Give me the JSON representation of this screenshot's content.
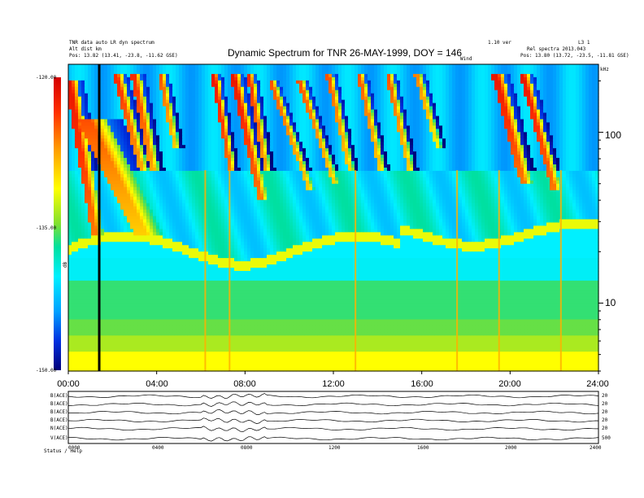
{
  "header": {
    "left_line1": "TNR data  auto  LR  dyn spectrum",
    "left_line2": "Alt  dist  km",
    "left_line3": "Pos: 13.82 (13.41, -23.8, -11.62 GSE)",
    "right_line1": "1.10 ver",
    "right_line2": "Rel spectra  2013.043",
    "right_line3": "Pos: 13.80 (13.72, -23.5, -11.81 GSE)",
    "right_corner": "L3   1",
    "mid_marker": "Wind"
  },
  "chart_data": {
    "type": "heatmap",
    "title": "Dynamic Spectrum for TNR 26-MAY-1999, DOY = 146",
    "x_ticks": [
      "00:00",
      "04:00",
      "08:00",
      "12:00",
      "16:00",
      "20:00",
      "24:00"
    ],
    "xlim": [
      0,
      24
    ],
    "y_scale": "log",
    "ylim": [
      4,
      250
    ],
    "y_ticks": [
      {
        "label": "100",
        "value": 100
      },
      {
        "label": "10",
        "value": 10
      }
    ],
    "y_unit": "kHz",
    "colorbar": {
      "label": "dB",
      "ticks": [
        "-120.00",
        "-135.00",
        "-150.00"
      ],
      "range": [
        -150,
        -120
      ]
    },
    "cursor_time_hours": 1.4,
    "bursts": [
      {
        "start": 0.1,
        "width": 0.5,
        "drift": 1.2,
        "f_top": 200,
        "f_bot": 25,
        "level": 0.95
      },
      {
        "start": 1.0,
        "width": 1.2,
        "drift": 2.6,
        "f_top": 120,
        "f_bot": 25,
        "level": 0.85
      },
      {
        "start": 2.2,
        "width": 0.4,
        "drift": 1.2,
        "f_top": 220,
        "f_bot": 60,
        "level": 0.9
      },
      {
        "start": 3.0,
        "width": 0.4,
        "drift": 0.9,
        "f_top": 220,
        "f_bot": 60,
        "level": 0.9
      },
      {
        "start": 4.2,
        "width": 0.3,
        "drift": 0.7,
        "f_top": 220,
        "f_bot": 80,
        "level": 0.85
      },
      {
        "start": 6.6,
        "width": 0.3,
        "drift": 0.8,
        "f_top": 220,
        "f_bot": 60,
        "level": 0.95
      },
      {
        "start": 7.5,
        "width": 0.4,
        "drift": 1.3,
        "f_top": 220,
        "f_bot": 40,
        "level": 0.95
      },
      {
        "start": 8.2,
        "width": 0.3,
        "drift": 0.8,
        "f_top": 220,
        "f_bot": 60,
        "level": 0.9
      },
      {
        "start": 9.2,
        "width": 0.3,
        "drift": 1.8,
        "f_top": 200,
        "f_bot": 45,
        "level": 0.85
      },
      {
        "start": 10.5,
        "width": 0.3,
        "drift": 1.6,
        "f_top": 200,
        "f_bot": 50,
        "level": 0.85
      },
      {
        "start": 11.8,
        "width": 0.3,
        "drift": 1.0,
        "f_top": 220,
        "f_bot": 60,
        "level": 0.85
      },
      {
        "start": 13.2,
        "width": 0.3,
        "drift": 1.0,
        "f_top": 220,
        "f_bot": 60,
        "level": 0.85
      },
      {
        "start": 14.5,
        "width": 0.3,
        "drift": 1.0,
        "f_top": 220,
        "f_bot": 60,
        "level": 0.85
      },
      {
        "start": 15.8,
        "width": 0.3,
        "drift": 1.0,
        "f_top": 220,
        "f_bot": 80,
        "level": 0.8
      },
      {
        "start": 19.4,
        "width": 0.5,
        "drift": 1.3,
        "f_top": 220,
        "f_bot": 50,
        "level": 0.95
      },
      {
        "start": 20.6,
        "width": 0.4,
        "drift": 1.5,
        "f_top": 220,
        "f_bot": 45,
        "level": 0.95
      }
    ],
    "spikes": [
      6.2,
      7.3,
      13.0,
      17.6,
      19.5,
      22.3
    ]
  },
  "aux_panel": {
    "row_labels": [
      "B(ACE)",
      "B(ACE)",
      "B(ACE)",
      "B(ACE)",
      "N(ACE)",
      "V(ACE)"
    ],
    "right_labels": [
      "20",
      "20",
      "20",
      "20",
      "20",
      "500"
    ],
    "x_ticks": [
      "0000",
      "0400",
      "0800",
      "1200",
      "1600",
      "2000",
      "2400"
    ],
    "footer": "Status / Help"
  }
}
